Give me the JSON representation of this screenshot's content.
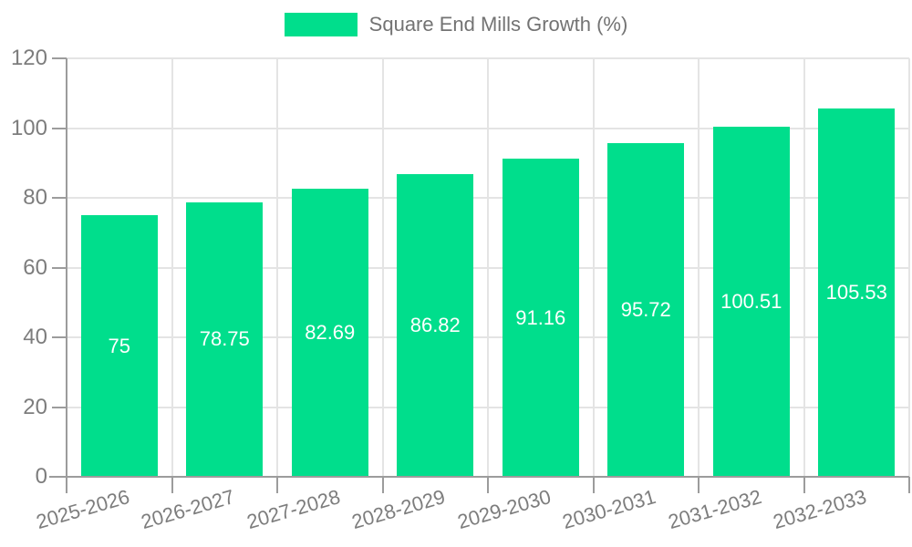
{
  "legend": {
    "label": "Square End Mills Growth (%)"
  },
  "chart_data": {
    "type": "bar",
    "title": "Square End Mills Growth (%)",
    "categories": [
      "2025-2026",
      "2026-2027",
      "2027-2028",
      "2028-2029",
      "2029-2030",
      "2030-2031",
      "2031-2032",
      "2032-2033"
    ],
    "values": [
      75,
      78.75,
      82.69,
      86.82,
      91.16,
      95.72,
      100.51,
      105.53
    ],
    "value_labels": [
      "75",
      "78.75",
      "82.69",
      "86.82",
      "91.16",
      "95.72",
      "100.51",
      "105.53"
    ],
    "xlabel": "",
    "ylabel": "",
    "ylim": [
      0,
      120
    ],
    "yticks": [
      0,
      20,
      40,
      60,
      80,
      100,
      120
    ],
    "grid": true,
    "legend_position": "top",
    "colors": {
      "bar": "#00DE8C",
      "axis": "#9c9c9c",
      "grid": "#e4e4e4",
      "tick_text": "#7d7d7d",
      "legend_text": "#737373",
      "value_text": "#ffffff",
      "background": "#ffffff"
    }
  }
}
